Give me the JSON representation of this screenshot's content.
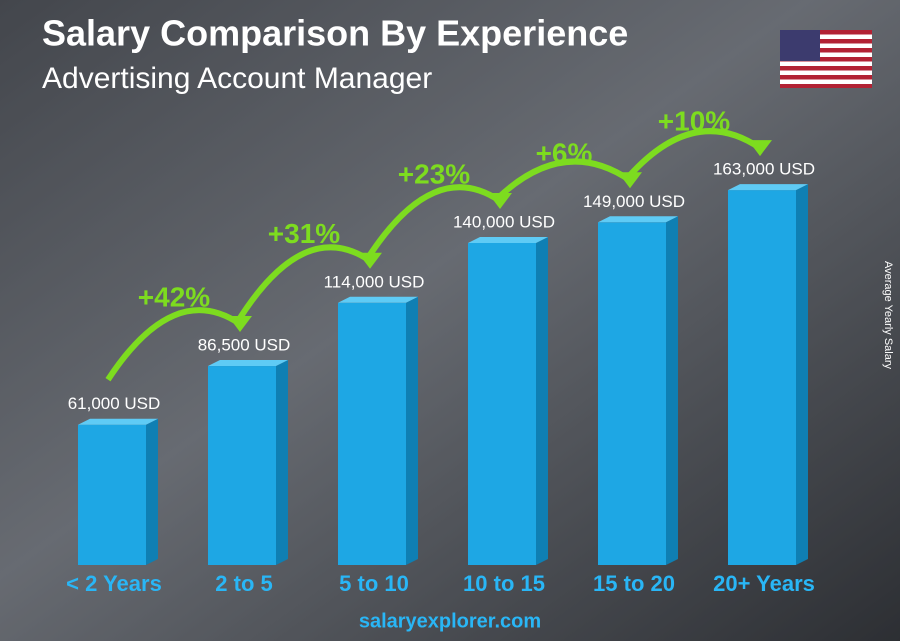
{
  "chart_data": {
    "type": "bar3d",
    "title": "Salary Comparison By Experience",
    "subtitle": "Advertising Account Manager",
    "y_label": "Average Yearly Salary",
    "footer": "salaryexplorer.com",
    "categories": [
      "< 2 Years",
      "2 to 5",
      "5 to 10",
      "10 to 15",
      "15 to 20",
      "20+ Years"
    ],
    "values": [
      61000,
      86500,
      114000,
      140000,
      149000,
      163000
    ],
    "value_labels": [
      "61,000 USD",
      "86,500 USD",
      "114,000 USD",
      "140,000 USD",
      "149,000 USD",
      "163,000 USD"
    ],
    "changes": [
      "+42%",
      "+31%",
      "+23%",
      "+6%",
      "+10%"
    ],
    "color": "#1ea7e4"
  }
}
